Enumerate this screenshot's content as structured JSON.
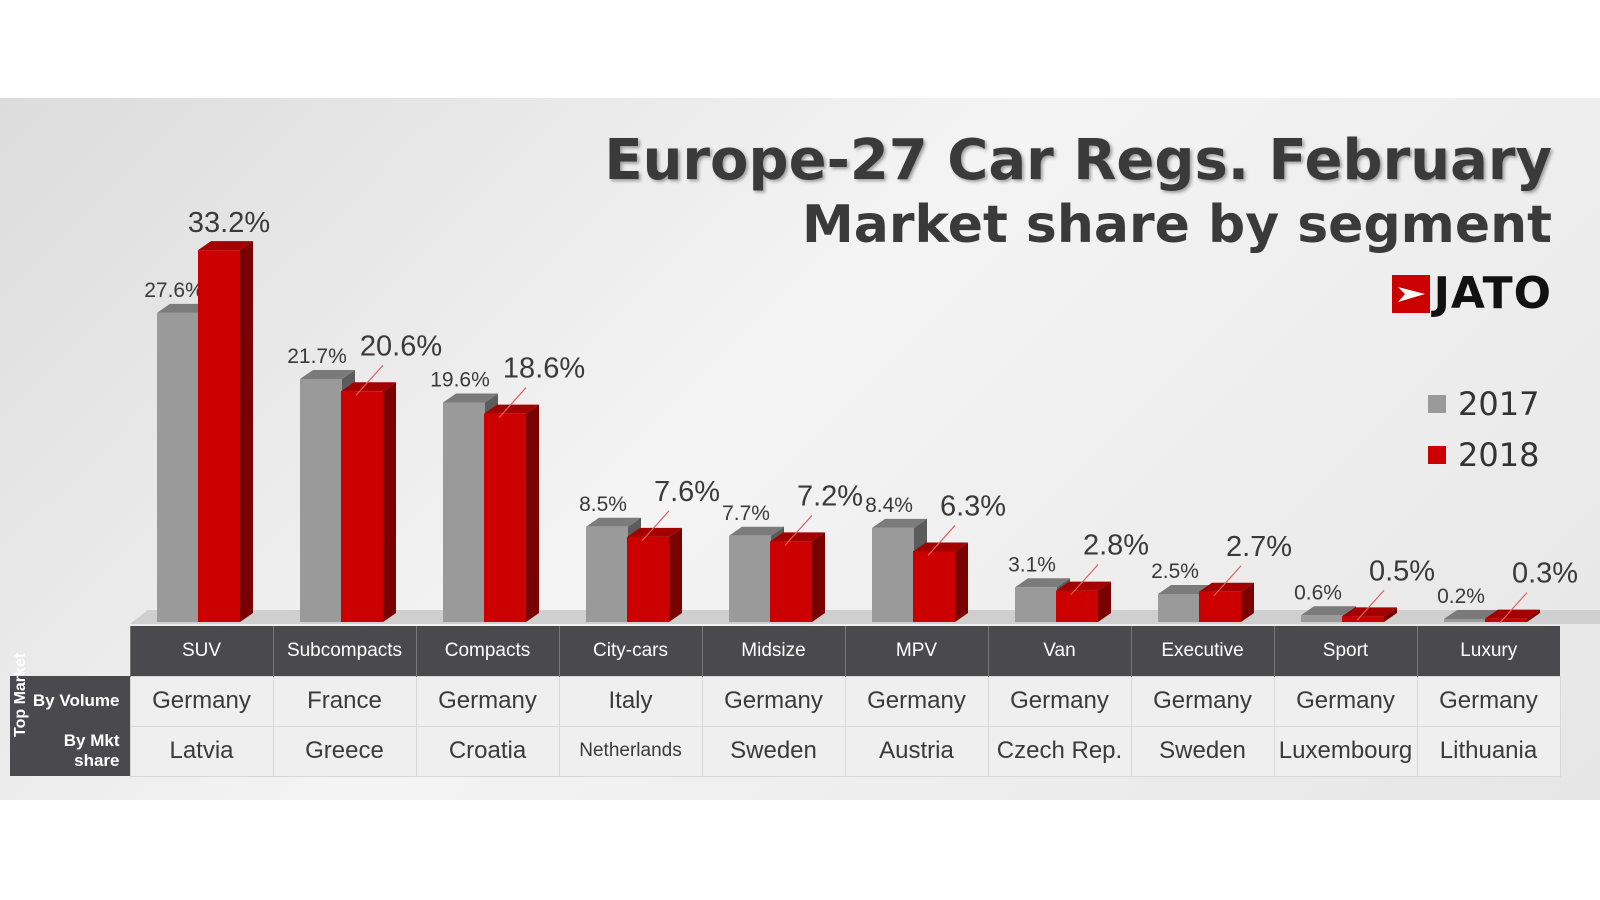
{
  "title": "Europe-27 Car Regs. February",
  "subtitle": "Market share by segment",
  "logo_text": "JATO",
  "colors": {
    "y2017": "#9a9a9a",
    "y2018": "#cc0000",
    "table_header": "#4a4a4e"
  },
  "legend": [
    {
      "label": "2017",
      "color": "#9a9a9a"
    },
    {
      "label": "2018",
      "color": "#cc0000"
    }
  ],
  "chart_data": {
    "type": "bar",
    "categories": [
      "SUV",
      "Subcompacts",
      "Compacts",
      "City-cars",
      "Midsize",
      "MPV",
      "Van",
      "Executive",
      "Sport",
      "Luxury"
    ],
    "series": [
      {
        "name": "2017",
        "values": [
          27.6,
          21.7,
          19.6,
          8.5,
          7.7,
          8.4,
          3.1,
          2.5,
          0.6,
          0.2
        ],
        "labels": [
          "27.6%",
          "21.7%",
          "19.6%",
          "8.5%",
          "7.7%",
          "8.4%",
          "3.1%",
          "2.5%",
          "0.6%",
          "0.2%"
        ]
      },
      {
        "name": "2018",
        "values": [
          33.2,
          20.6,
          18.6,
          7.6,
          7.2,
          6.3,
          2.8,
          2.7,
          0.5,
          0.3
        ],
        "labels": [
          "33.2%",
          "20.6%",
          "18.6%",
          "7.6%",
          "7.2%",
          "6.3%",
          "2.8%",
          "2.7%",
          "0.5%",
          "0.3%"
        ]
      }
    ],
    "ylim": [
      0,
      35
    ],
    "grid": false,
    "legend_position": "right"
  },
  "table": {
    "side_label": "Top Market",
    "row_labels": [
      "By Volume",
      "By Mkt share"
    ],
    "by_volume": [
      "Germany",
      "France",
      "Germany",
      "Italy",
      "Germany",
      "Germany",
      "Germany",
      "Germany",
      "Germany",
      "Germany"
    ],
    "by_mkt_share": [
      "Latvia",
      "Greece",
      "Croatia",
      "Netherlands",
      "Sweden",
      "Austria",
      "Czech Rep.",
      "Sweden",
      "Luxembourg",
      "Lithuania"
    ]
  }
}
